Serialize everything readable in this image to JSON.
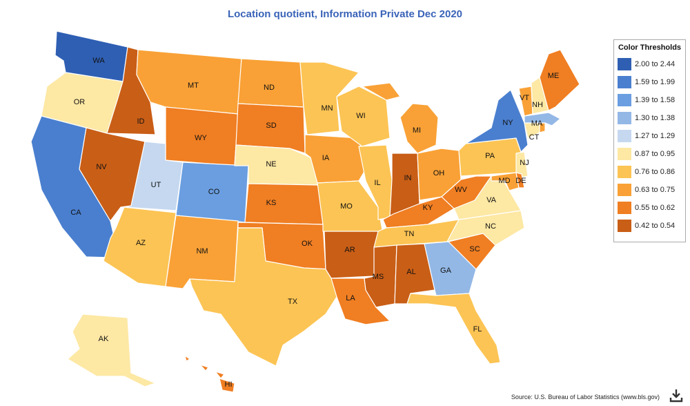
{
  "title": "Location quotient, Information Private Dec 2020",
  "source": "Source: U.S. Bureau of Labor Statistics (www.bls.gov)",
  "legend": {
    "title": "Color Thresholds",
    "bins": [
      {
        "label": "2.00 to 2.44",
        "color": "#2f5fb3"
      },
      {
        "label": "1.59 to 1.99",
        "color": "#4a7fcf"
      },
      {
        "label": "1.39 to 1.58",
        "color": "#6a9ee0"
      },
      {
        "label": "1.30 to 1.38",
        "color": "#93b8e6"
      },
      {
        "label": "1.27 to 1.29",
        "color": "#c5d8f0"
      },
      {
        "label": "0.87 to 0.95",
        "color": "#fde8a4"
      },
      {
        "label": "0.76 to 0.86",
        "color": "#fcc454"
      },
      {
        "label": "0.63 to 0.75",
        "color": "#f9a136"
      },
      {
        "label": "0.55 to 0.62",
        "color": "#f07e22"
      },
      {
        "label": "0.42 to 0.54",
        "color": "#c95e16"
      }
    ]
  },
  "map_data": {
    "value_type": "Location quotient bin (index into legend.bins, 0 = 2.00 to 2.44)",
    "states": [
      {
        "abbr": "WA",
        "bin": 0
      },
      {
        "abbr": "OR",
        "bin": 5
      },
      {
        "abbr": "CA",
        "bin": 1
      },
      {
        "abbr": "ID",
        "bin": 9
      },
      {
        "abbr": "NV",
        "bin": 9
      },
      {
        "abbr": "MT",
        "bin": 7
      },
      {
        "abbr": "WY",
        "bin": 8
      },
      {
        "abbr": "UT",
        "bin": 4
      },
      {
        "abbr": "CO",
        "bin": 2
      },
      {
        "abbr": "AZ",
        "bin": 6
      },
      {
        "abbr": "NM",
        "bin": 7
      },
      {
        "abbr": "ND",
        "bin": 7
      },
      {
        "abbr": "SD",
        "bin": 8
      },
      {
        "abbr": "NE",
        "bin": 5
      },
      {
        "abbr": "KS",
        "bin": 8
      },
      {
        "abbr": "OK",
        "bin": 8
      },
      {
        "abbr": "TX",
        "bin": 6
      },
      {
        "abbr": "MN",
        "bin": 6
      },
      {
        "abbr": "IA",
        "bin": 7
      },
      {
        "abbr": "MO",
        "bin": 6
      },
      {
        "abbr": "AR",
        "bin": 9
      },
      {
        "abbr": "LA",
        "bin": 8
      },
      {
        "abbr": "WI",
        "bin": 6
      },
      {
        "abbr": "IL",
        "bin": 6
      },
      {
        "abbr": "MI",
        "bin": 7
      },
      {
        "abbr": "IN",
        "bin": 9
      },
      {
        "abbr": "OH",
        "bin": 7
      },
      {
        "abbr": "KY",
        "bin": 8
      },
      {
        "abbr": "TN",
        "bin": 6
      },
      {
        "abbr": "MS",
        "bin": 9
      },
      {
        "abbr": "AL",
        "bin": 9
      },
      {
        "abbr": "GA",
        "bin": 3
      },
      {
        "abbr": "FL",
        "bin": 6
      },
      {
        "abbr": "SC",
        "bin": 8
      },
      {
        "abbr": "NC",
        "bin": 5
      },
      {
        "abbr": "VA",
        "bin": 5
      },
      {
        "abbr": "WV",
        "bin": 8
      },
      {
        "abbr": "PA",
        "bin": 6
      },
      {
        "abbr": "NY",
        "bin": 1
      },
      {
        "abbr": "NJ",
        "bin": 5
      },
      {
        "abbr": "MD",
        "bin": 7
      },
      {
        "abbr": "DE",
        "bin": 8
      },
      {
        "abbr": "CT",
        "bin": 5
      },
      {
        "abbr": "MA",
        "bin": 3
      },
      {
        "abbr": "RI",
        "bin": 7
      },
      {
        "abbr": "VT",
        "bin": 7
      },
      {
        "abbr": "NH",
        "bin": 5
      },
      {
        "abbr": "ME",
        "bin": 8
      },
      {
        "abbr": "AK",
        "bin": 5
      },
      {
        "abbr": "HI",
        "bin": 8
      }
    ]
  }
}
